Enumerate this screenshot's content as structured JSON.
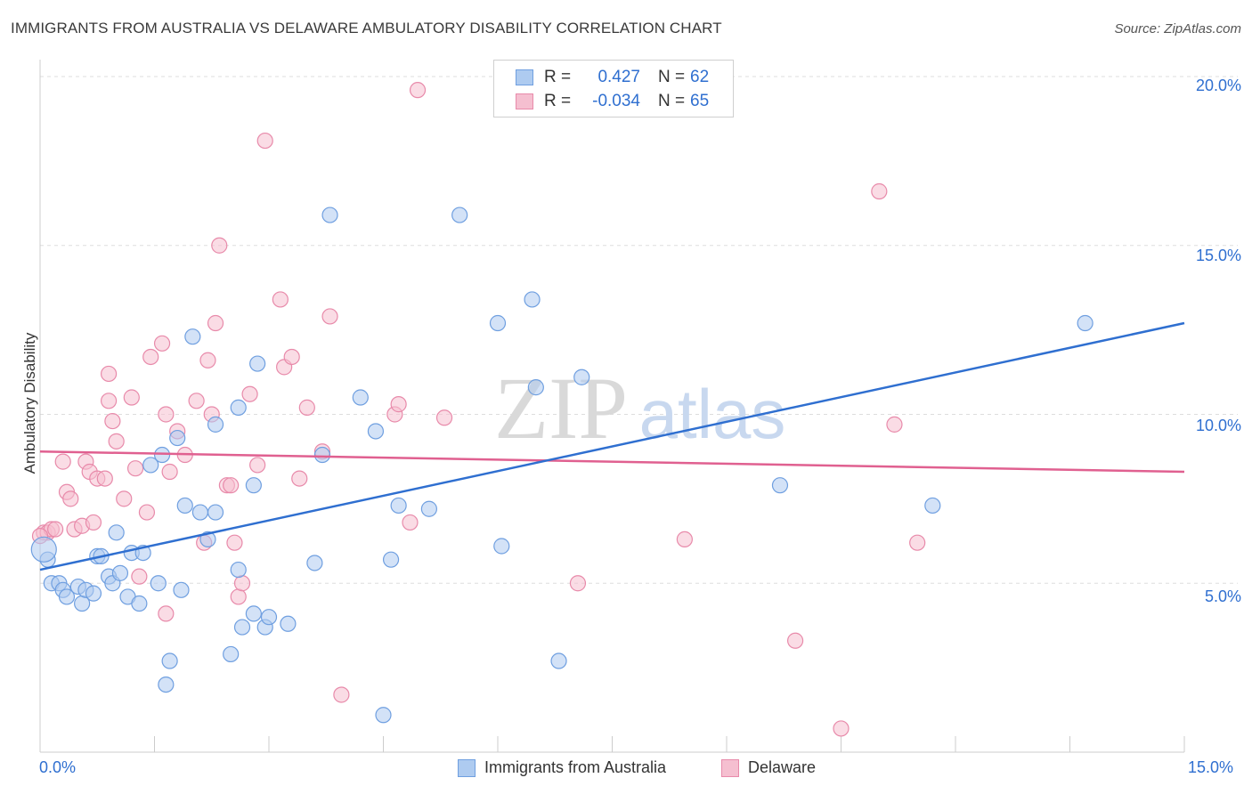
{
  "title": "IMMIGRANTS FROM AUSTRALIA VS DELAWARE AMBULATORY DISABILITY CORRELATION CHART",
  "source": "Source: ZipAtlas.com",
  "watermark_zip": "ZIP",
  "watermark_atlas": "atlas",
  "colors": {
    "blue": "#2f6fd0",
    "blue_fill": "#aecbf0",
    "pink": "#e06090",
    "pink_fill": "#f5bfd0",
    "grid": "#dddddd"
  },
  "legend": {
    "r1_label": "R =",
    "r1_value": "0.427",
    "n1_label": "N =",
    "n1_value": "62",
    "r2_label": "R =",
    "r2_value": "-0.034",
    "n2_label": "N =",
    "n2_value": "65"
  },
  "bottom_legend": {
    "s1": "Immigrants from Australia",
    "s2": "Delaware"
  },
  "axes": {
    "x_min_label": "0.0%",
    "x_max_label": "15.0%",
    "y_ticks": [
      "5.0%",
      "10.0%",
      "15.0%",
      "20.0%"
    ]
  },
  "chart_data": {
    "type": "scatter",
    "title": "IMMIGRANTS FROM AUSTRALIA VS DELAWARE AMBULATORY DISABILITY CORRELATION CHART",
    "xlabel": "",
    "ylabel": "Ambulatory Disability",
    "xlim": [
      0,
      15
    ],
    "ylim": [
      0,
      20.5
    ],
    "series": [
      {
        "name": "Immigrants from Australia",
        "trend": [
          [
            0,
            5.4
          ],
          [
            15,
            12.7
          ]
        ],
        "points": [
          [
            0.1,
            5.7
          ],
          [
            0.15,
            5.0
          ],
          [
            0.25,
            5.0
          ],
          [
            0.3,
            4.8
          ],
          [
            0.35,
            4.6
          ],
          [
            0.5,
            4.9
          ],
          [
            0.55,
            4.4
          ],
          [
            0.6,
            4.8
          ],
          [
            0.7,
            4.7
          ],
          [
            0.75,
            5.8
          ],
          [
            0.8,
            5.8
          ],
          [
            0.9,
            5.2
          ],
          [
            0.95,
            5.0
          ],
          [
            1.0,
            6.5
          ],
          [
            1.05,
            5.3
          ],
          [
            1.15,
            4.6
          ],
          [
            1.2,
            5.9
          ],
          [
            1.3,
            4.4
          ],
          [
            1.35,
            5.9
          ],
          [
            1.45,
            8.5
          ],
          [
            1.55,
            5.0
          ],
          [
            1.6,
            8.8
          ],
          [
            1.65,
            2.0
          ],
          [
            1.7,
            2.7
          ],
          [
            1.8,
            9.3
          ],
          [
            1.85,
            4.8
          ],
          [
            1.9,
            7.3
          ],
          [
            2.0,
            12.3
          ],
          [
            2.1,
            7.1
          ],
          [
            2.2,
            6.3
          ],
          [
            2.3,
            9.7
          ],
          [
            2.3,
            7.1
          ],
          [
            2.5,
            2.9
          ],
          [
            2.6,
            10.2
          ],
          [
            2.6,
            5.4
          ],
          [
            2.65,
            3.7
          ],
          [
            2.8,
            4.1
          ],
          [
            2.8,
            7.9
          ],
          [
            2.85,
            11.5
          ],
          [
            2.95,
            3.7
          ],
          [
            3.0,
            4.0
          ],
          [
            3.25,
            3.8
          ],
          [
            3.6,
            5.6
          ],
          [
            3.7,
            8.8
          ],
          [
            3.8,
            15.9
          ],
          [
            4.2,
            10.5
          ],
          [
            4.4,
            9.5
          ],
          [
            4.5,
            1.1
          ],
          [
            4.6,
            5.7
          ],
          [
            4.7,
            7.3
          ],
          [
            5.1,
            7.2
          ],
          [
            5.5,
            15.9
          ],
          [
            6.0,
            12.7
          ],
          [
            6.05,
            6.1
          ],
          [
            6.45,
            13.4
          ],
          [
            6.5,
            10.8
          ],
          [
            6.8,
            2.7
          ],
          [
            7.1,
            11.1
          ],
          [
            9.7,
            7.9
          ],
          [
            11.7,
            7.3
          ],
          [
            13.7,
            12.7
          ],
          [
            0.05,
            6.0
          ]
        ]
      },
      {
        "name": "Delaware",
        "trend": [
          [
            0,
            8.9
          ],
          [
            15,
            8.3
          ]
        ],
        "points": [
          [
            0.05,
            6.5
          ],
          [
            0.1,
            6.5
          ],
          [
            0.15,
            6.6
          ],
          [
            0.2,
            6.6
          ],
          [
            0.3,
            8.6
          ],
          [
            0.35,
            7.7
          ],
          [
            0.4,
            7.5
          ],
          [
            0.45,
            6.6
          ],
          [
            0.55,
            6.7
          ],
          [
            0.6,
            8.6
          ],
          [
            0.65,
            8.3
          ],
          [
            0.7,
            6.8
          ],
          [
            0.75,
            8.1
          ],
          [
            0.85,
            8.1
          ],
          [
            0.9,
            11.2
          ],
          [
            0.9,
            10.4
          ],
          [
            0.95,
            9.8
          ],
          [
            1.0,
            9.2
          ],
          [
            1.1,
            7.5
          ],
          [
            1.2,
            10.5
          ],
          [
            1.25,
            8.4
          ],
          [
            1.3,
            5.2
          ],
          [
            1.4,
            7.1
          ],
          [
            1.45,
            11.7
          ],
          [
            1.6,
            12.1
          ],
          [
            1.65,
            10.0
          ],
          [
            1.65,
            4.1
          ],
          [
            1.7,
            8.3
          ],
          [
            1.8,
            9.5
          ],
          [
            1.9,
            8.8
          ],
          [
            2.05,
            10.4
          ],
          [
            2.15,
            6.2
          ],
          [
            2.2,
            11.6
          ],
          [
            2.25,
            10.0
          ],
          [
            2.3,
            12.7
          ],
          [
            2.35,
            15.0
          ],
          [
            2.45,
            7.9
          ],
          [
            2.5,
            7.9
          ],
          [
            2.55,
            6.2
          ],
          [
            2.6,
            4.6
          ],
          [
            2.65,
            5.0
          ],
          [
            2.75,
            10.6
          ],
          [
            2.85,
            8.5
          ],
          [
            2.95,
            18.1
          ],
          [
            3.15,
            13.4
          ],
          [
            3.2,
            11.4
          ],
          [
            3.3,
            11.7
          ],
          [
            3.4,
            8.1
          ],
          [
            3.5,
            10.2
          ],
          [
            3.7,
            8.9
          ],
          [
            3.8,
            12.9
          ],
          [
            3.95,
            1.7
          ],
          [
            4.65,
            10.0
          ],
          [
            4.7,
            10.3
          ],
          [
            4.85,
            6.8
          ],
          [
            4.95,
            19.6
          ],
          [
            5.3,
            9.9
          ],
          [
            7.05,
            5.0
          ],
          [
            8.45,
            6.3
          ],
          [
            9.9,
            3.3
          ],
          [
            10.5,
            0.7
          ],
          [
            11.0,
            16.6
          ],
          [
            11.2,
            9.7
          ],
          [
            11.5,
            6.2
          ],
          [
            0.0,
            6.4
          ]
        ]
      }
    ]
  }
}
